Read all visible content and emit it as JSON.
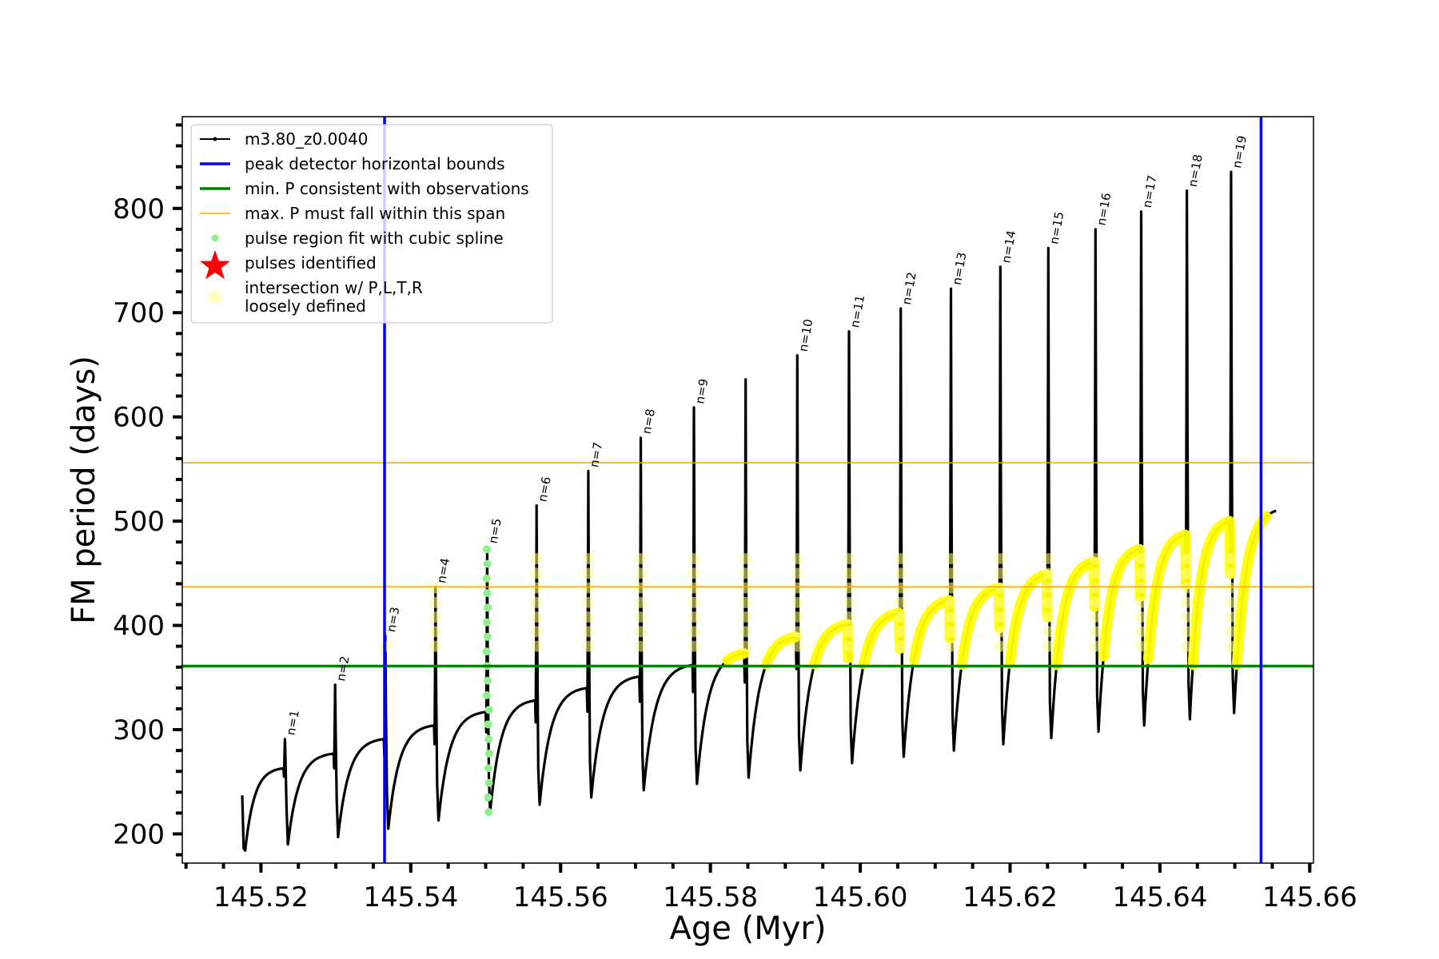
{
  "chart_data": {
    "type": "line",
    "xlabel": "Age (Myr)",
    "ylabel": "FM period (days)",
    "xlim": [
      145.5095,
      145.6605
    ],
    "ylim": [
      172,
      888
    ],
    "x_ticks": [
      145.52,
      145.54,
      145.56,
      145.58,
      145.6,
      145.62,
      145.64,
      145.66
    ],
    "x_tick_labels": [
      "145.52",
      "145.54",
      "145.56",
      "145.58",
      "145.60",
      "145.62",
      "145.64",
      "145.66"
    ],
    "y_ticks": [
      200,
      300,
      400,
      500,
      600,
      700,
      800
    ],
    "y_tick_labels": [
      "200",
      "300",
      "400",
      "500",
      "600",
      "700",
      "800"
    ],
    "legend_position": "upper-left",
    "legend": [
      {
        "label": "m3.80_z0.0040",
        "marker": "line-dot",
        "color": "#000000"
      },
      {
        "label": "peak detector horizontal bounds",
        "marker": "line",
        "color": "#0000ff"
      },
      {
        "label": "min. P consistent with observations",
        "marker": "line",
        "color": "#008000"
      },
      {
        "label": "max. P must fall within this span",
        "marker": "thin-line",
        "color": "#ffa500"
      },
      {
        "label": "pulse region fit with cubic spline",
        "marker": "dot",
        "color": "#90ee90"
      },
      {
        "label": "pulses identified",
        "marker": "star",
        "color": "#ff0000"
      },
      {
        "label": "intersection w/ P,L,T,R",
        "label2": "loosely defined",
        "marker": "circle",
        "color": "#ffffaa"
      }
    ],
    "vertical_bounds": [
      145.5365,
      145.6535
    ],
    "min_period": 361,
    "max_period_span": [
      437,
      556
    ],
    "track": {
      "name": "m3.80_z0.0040",
      "start_age": 145.5175,
      "end_age": 145.6555,
      "end_period": 510
    },
    "pulses": [
      {
        "n": 1,
        "age": 145.5232,
        "pre": 263,
        "peak": 291,
        "dip": 190
      },
      {
        "n": 2,
        "age": 145.5299,
        "pre": 277,
        "peak": 343,
        "dip": 197
      },
      {
        "n": 3,
        "age": 145.5366,
        "pre": 291,
        "peak": 390,
        "dip": 205
      },
      {
        "n": 4,
        "age": 145.5433,
        "pre": 304,
        "peak": 437,
        "dip": 213
      },
      {
        "n": 5,
        "age": 145.5502,
        "pre": 317,
        "peak": 475,
        "dip": 221
      },
      {
        "n": 6,
        "age": 145.5568,
        "pre": 328,
        "peak": 515,
        "dip": 228
      },
      {
        "n": 7,
        "age": 145.5637,
        "pre": 340,
        "peak": 548,
        "dip": 235
      },
      {
        "n": 8,
        "age": 145.5707,
        "pre": 351,
        "peak": 580,
        "dip": 242
      },
      {
        "n": 9,
        "age": 145.5778,
        "pre": 362,
        "peak": 609,
        "dip": 248
      },
      {
        "n": null,
        "age": 145.5847,
        "pre": 373,
        "peak": 636,
        "dip": 254
      },
      {
        "n": 10,
        "age": 145.5916,
        "pre": 389,
        "peak": 659,
        "dip": 261
      },
      {
        "n": 11,
        "age": 145.5985,
        "pre": 401,
        "peak": 682,
        "dip": 268
      },
      {
        "n": 12,
        "age": 145.6054,
        "pre": 412,
        "peak": 704,
        "dip": 274
      },
      {
        "n": 13,
        "age": 145.6121,
        "pre": 424,
        "peak": 723,
        "dip": 280
      },
      {
        "n": 14,
        "age": 145.6187,
        "pre": 436,
        "peak": 744,
        "dip": 286
      },
      {
        "n": 15,
        "age": 145.6251,
        "pre": 449,
        "peak": 762,
        "dip": 292
      },
      {
        "n": 16,
        "age": 145.6314,
        "pre": 461,
        "peak": 780,
        "dip": 298
      },
      {
        "n": 17,
        "age": 145.6375,
        "pre": 473,
        "peak": 797,
        "dip": 304
      },
      {
        "n": 18,
        "age": 145.6436,
        "pre": 487,
        "peak": 817,
        "dip": 310
      },
      {
        "n": 19,
        "age": 145.6495,
        "pre": 500,
        "peak": 835,
        "dip": 316
      }
    ],
    "spline_fit_pulse": 5,
    "highlight_from_age": 145.5822
  }
}
